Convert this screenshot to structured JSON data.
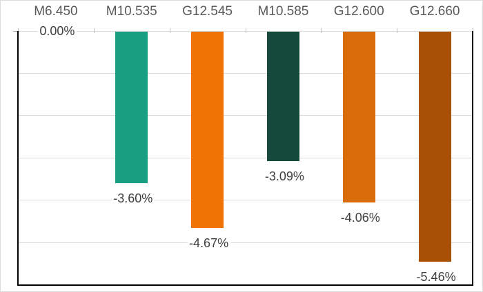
{
  "chart_data": {
    "type": "bar",
    "title": "",
    "subtitle": "",
    "xlabel": "",
    "ylabel": "",
    "unit": "%",
    "categories": [
      "M6.450",
      "M10.535",
      "G12.545",
      "M10.585",
      "G12.600",
      "G12.660"
    ],
    "values": [
      0.0,
      -3.6,
      -4.67,
      -3.09,
      -4.06,
      -5.46
    ],
    "data_labels": [
      "0.00%",
      "-3.60%",
      "-4.67%",
      "-3.09%",
      "-4.06%",
      "-5.46%"
    ],
    "bar_colors": [
      "#1a9e82",
      "#1a9e82",
      "#f07306",
      "#15493c",
      "#d96c09",
      "#a85004"
    ],
    "ylim": [
      -6,
      0
    ],
    "gridline_step": 1,
    "grid": "horizontal",
    "legend": false,
    "category_axis_position": "top",
    "data_label_position": "outside-end-below",
    "colors": {
      "gridline": "#d9d9d9",
      "axis_line": "#000000",
      "tick": "#bfbfbf",
      "category_label": "#595959",
      "data_label": "#3f3f3f",
      "background": "#ffffff",
      "frame_border": "#dcdcdc"
    }
  }
}
